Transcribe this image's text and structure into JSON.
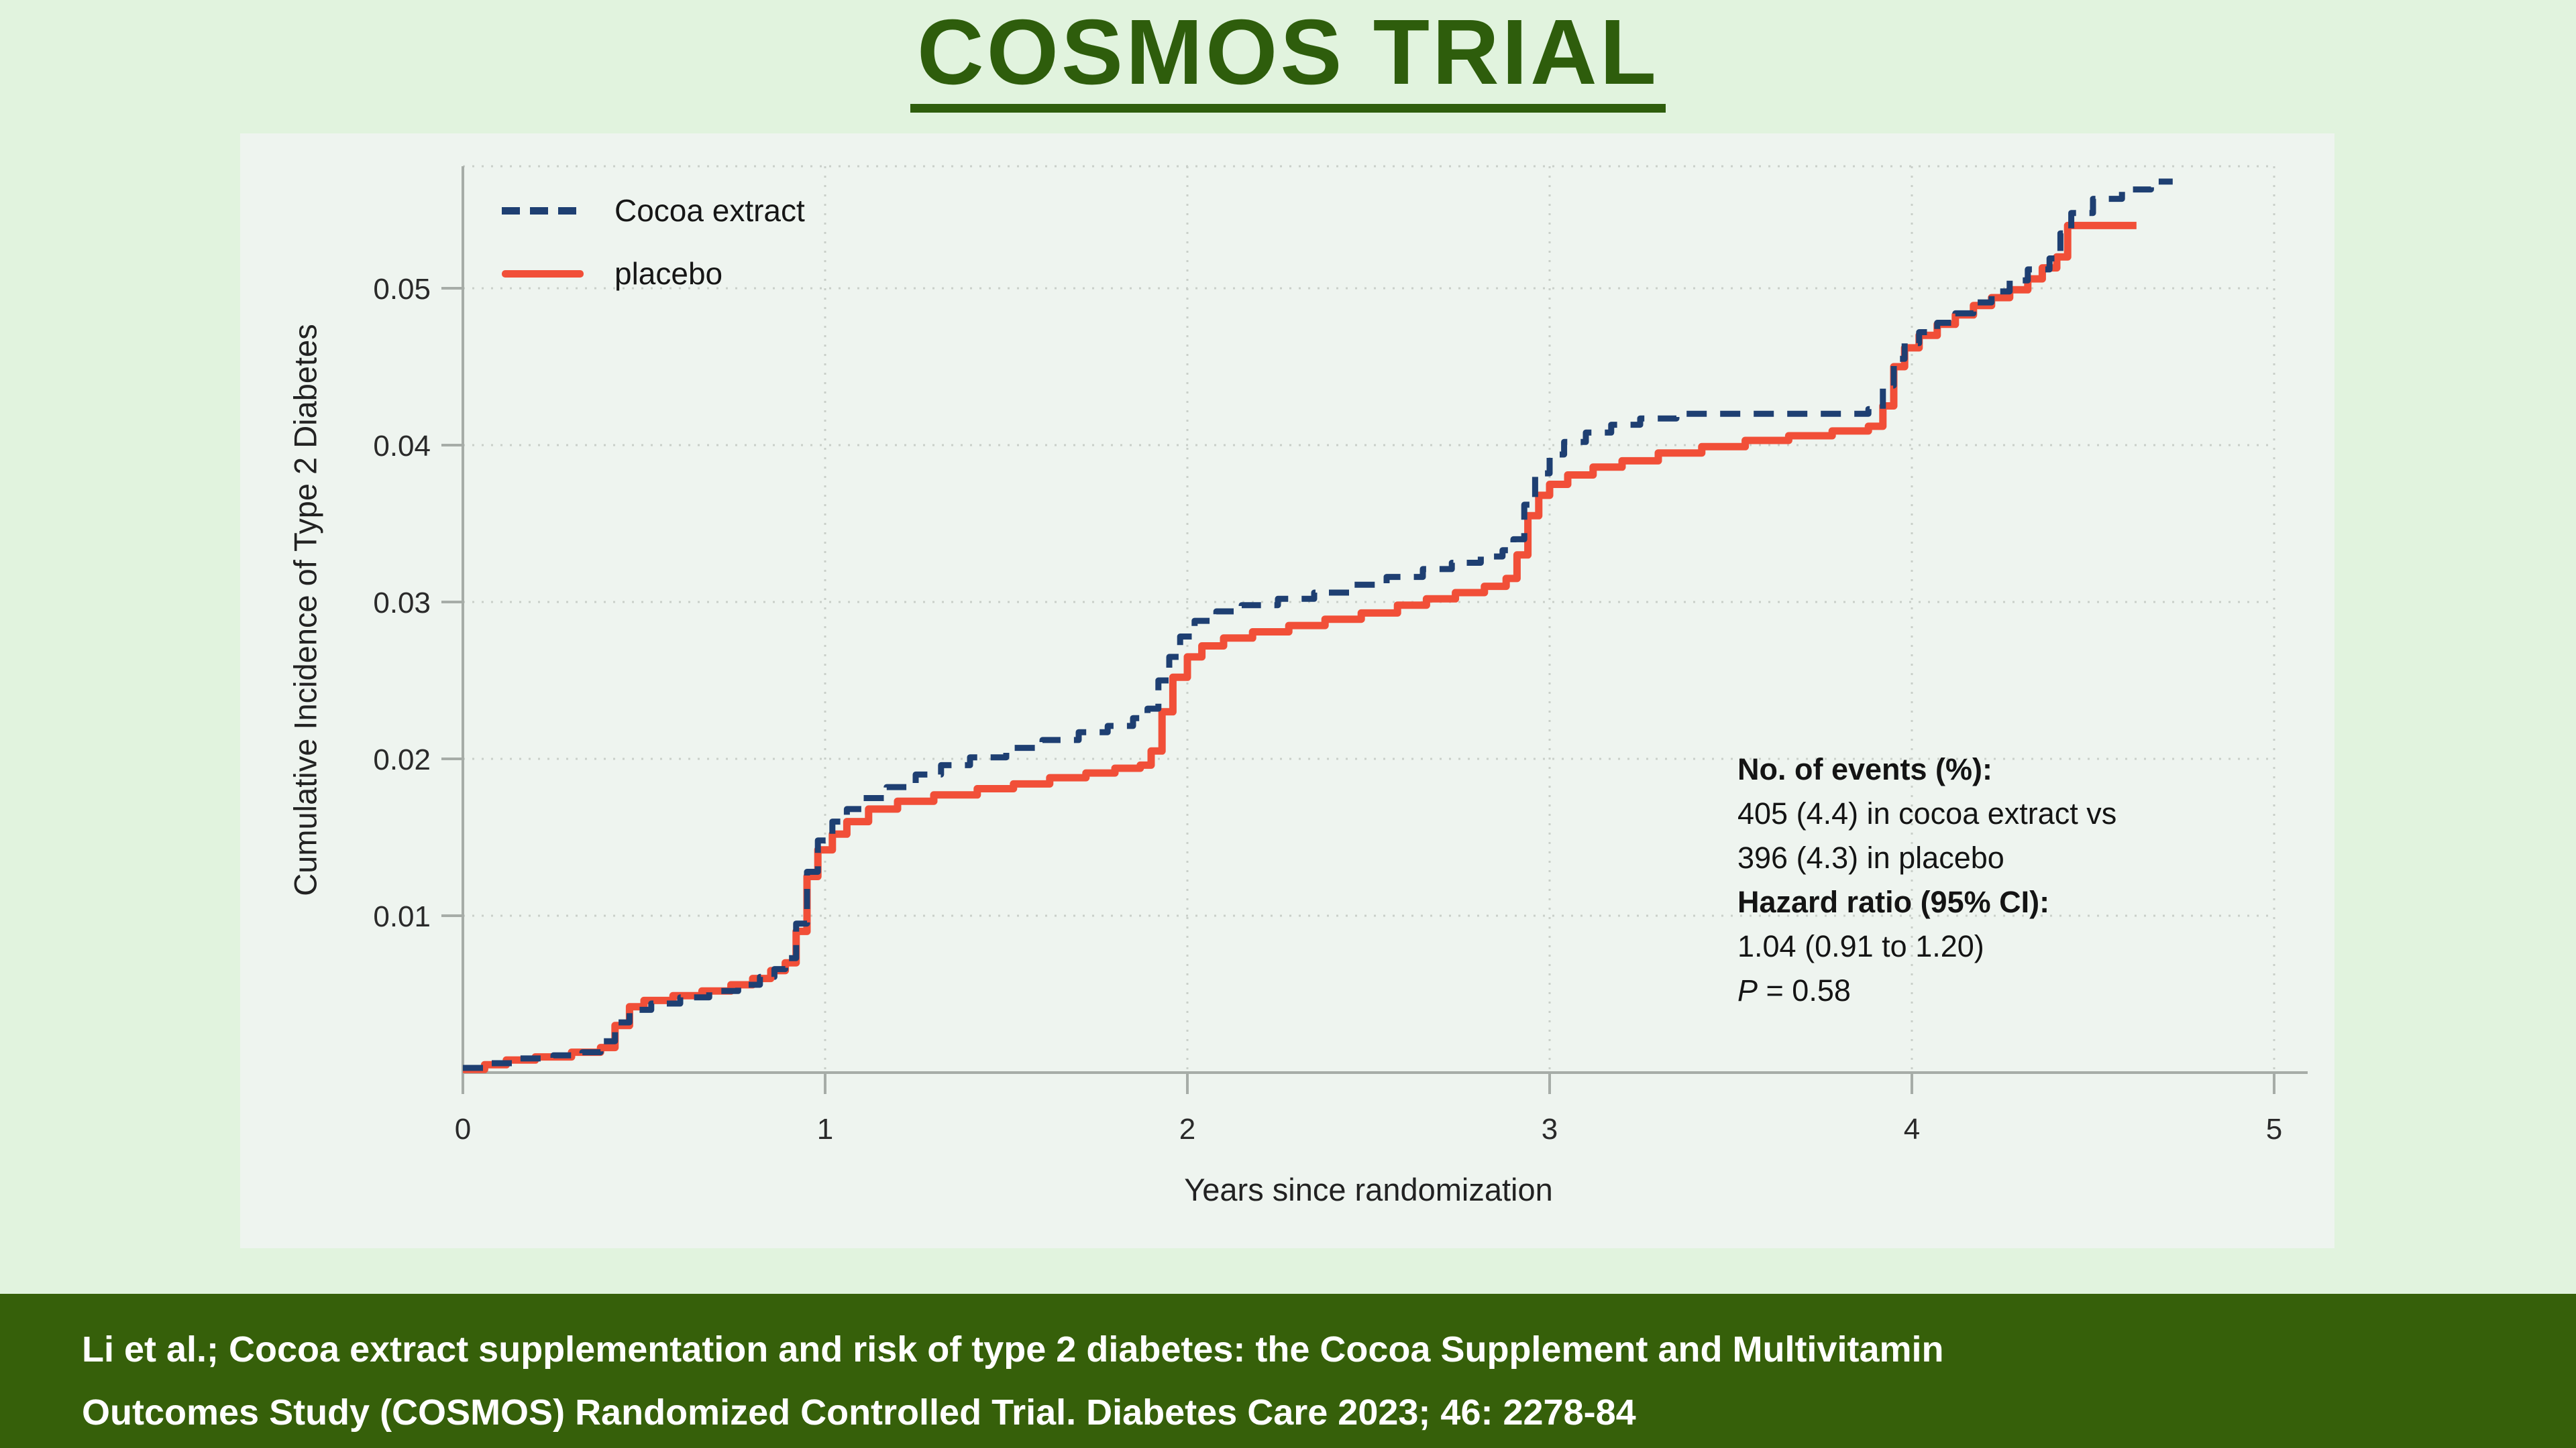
{
  "page": {
    "title": "COSMOS TRIAL"
  },
  "theme": {
    "page_bg": "#e1f3de",
    "card_bg": "#eef4ef",
    "title_color": "#2e5d0c",
    "footer_bg": "#36600a",
    "footer_text": "#ffffff",
    "axis": "#a6aca7",
    "grid": "#c9cfc9"
  },
  "chart_data": {
    "type": "line",
    "subtype": "step-cumulative-incidence",
    "title": "",
    "xlabel": "Years since randomization",
    "ylabel": "Cumulative Incidence of Type 2 Diabetes",
    "xlim": [
      0,
      5.1
    ],
    "ylim": [
      0,
      0.058
    ],
    "grid": "dotted",
    "legend_position": "top-left",
    "x_ticks": [
      0,
      1,
      2,
      3,
      4,
      5
    ],
    "x_tick_labels": [
      "0",
      "1",
      "2",
      "3",
      "4",
      "5"
    ],
    "y_ticks": [
      0.01,
      0.02,
      0.03,
      0.04,
      0.05
    ],
    "y_tick_labels": [
      "0.01",
      "0.02",
      "0.03",
      "0.04",
      "0.05"
    ],
    "series": [
      {
        "name": "Cocoa extract",
        "color": "#1e3f72",
        "style": "dashed",
        "points": [
          [
            0,
            0.0003
          ],
          [
            0.07,
            0.0006
          ],
          [
            0.15,
            0.0009
          ],
          [
            0.25,
            0.0011
          ],
          [
            0.33,
            0.0013
          ],
          [
            0.38,
            0.002
          ],
          [
            0.42,
            0.0032
          ],
          [
            0.46,
            0.004
          ],
          [
            0.52,
            0.0044
          ],
          [
            0.6,
            0.0048
          ],
          [
            0.68,
            0.0052
          ],
          [
            0.76,
            0.0056
          ],
          [
            0.82,
            0.0061
          ],
          [
            0.86,
            0.0066
          ],
          [
            0.89,
            0.0073
          ],
          [
            0.92,
            0.0095
          ],
          [
            0.95,
            0.0128
          ],
          [
            0.98,
            0.0148
          ],
          [
            1.02,
            0.016
          ],
          [
            1.06,
            0.0168
          ],
          [
            1.1,
            0.0175
          ],
          [
            1.17,
            0.0182
          ],
          [
            1.25,
            0.019
          ],
          [
            1.32,
            0.0196
          ],
          [
            1.4,
            0.0201
          ],
          [
            1.5,
            0.0207
          ],
          [
            1.6,
            0.0212
          ],
          [
            1.7,
            0.0217
          ],
          [
            1.78,
            0.0221
          ],
          [
            1.85,
            0.0226
          ],
          [
            1.89,
            0.0232
          ],
          [
            1.92,
            0.025
          ],
          [
            1.95,
            0.0265
          ],
          [
            1.98,
            0.0278
          ],
          [
            2.02,
            0.0288
          ],
          [
            2.08,
            0.0294
          ],
          [
            2.15,
            0.0298
          ],
          [
            2.25,
            0.0302
          ],
          [
            2.35,
            0.0306
          ],
          [
            2.45,
            0.0311
          ],
          [
            2.55,
            0.0316
          ],
          [
            2.65,
            0.0321
          ],
          [
            2.73,
            0.0325
          ],
          [
            2.81,
            0.0329
          ],
          [
            2.87,
            0.0333
          ],
          [
            2.9,
            0.034
          ],
          [
            2.93,
            0.0362
          ],
          [
            2.96,
            0.0382
          ],
          [
            3.0,
            0.0394
          ],
          [
            3.04,
            0.0402
          ],
          [
            3.1,
            0.0408
          ],
          [
            3.17,
            0.0413
          ],
          [
            3.25,
            0.0417
          ],
          [
            3.35,
            0.042
          ],
          [
            3.5,
            0.042
          ],
          [
            3.65,
            0.042
          ],
          [
            3.8,
            0.042
          ],
          [
            3.88,
            0.0423
          ],
          [
            3.92,
            0.0438
          ],
          [
            3.95,
            0.0455
          ],
          [
            3.98,
            0.0465
          ],
          [
            4.02,
            0.0472
          ],
          [
            4.07,
            0.0478
          ],
          [
            4.12,
            0.0484
          ],
          [
            4.17,
            0.0491
          ],
          [
            4.22,
            0.0498
          ],
          [
            4.27,
            0.0505
          ],
          [
            4.32,
            0.0512
          ],
          [
            4.38,
            0.0519
          ],
          [
            4.41,
            0.0535
          ],
          [
            4.44,
            0.0548
          ],
          [
            4.5,
            0.0557
          ],
          [
            4.58,
            0.0563
          ],
          [
            4.66,
            0.0568
          ],
          [
            4.72,
            0.0568
          ]
        ]
      },
      {
        "name": "placebo",
        "color": "#f14f38",
        "style": "solid",
        "points": [
          [
            0,
            0.0002
          ],
          [
            0.06,
            0.0005
          ],
          [
            0.12,
            0.0008
          ],
          [
            0.2,
            0.001
          ],
          [
            0.3,
            0.0013
          ],
          [
            0.38,
            0.0016
          ],
          [
            0.42,
            0.003
          ],
          [
            0.46,
            0.0042
          ],
          [
            0.5,
            0.0046
          ],
          [
            0.58,
            0.0049
          ],
          [
            0.66,
            0.0052
          ],
          [
            0.74,
            0.0056
          ],
          [
            0.8,
            0.006
          ],
          [
            0.85,
            0.0065
          ],
          [
            0.89,
            0.007
          ],
          [
            0.92,
            0.009
          ],
          [
            0.95,
            0.0125
          ],
          [
            0.98,
            0.0142
          ],
          [
            1.02,
            0.0152
          ],
          [
            1.06,
            0.016
          ],
          [
            1.12,
            0.0168
          ],
          [
            1.2,
            0.0173
          ],
          [
            1.3,
            0.0177
          ],
          [
            1.42,
            0.0181
          ],
          [
            1.52,
            0.0184
          ],
          [
            1.62,
            0.0188
          ],
          [
            1.72,
            0.0191
          ],
          [
            1.8,
            0.0194
          ],
          [
            1.87,
            0.0196
          ],
          [
            1.9,
            0.0205
          ],
          [
            1.93,
            0.023
          ],
          [
            1.96,
            0.0252
          ],
          [
            2.0,
            0.0265
          ],
          [
            2.04,
            0.0272
          ],
          [
            2.1,
            0.0277
          ],
          [
            2.18,
            0.0281
          ],
          [
            2.28,
            0.0285
          ],
          [
            2.38,
            0.0289
          ],
          [
            2.48,
            0.0293
          ],
          [
            2.58,
            0.0298
          ],
          [
            2.66,
            0.0302
          ],
          [
            2.74,
            0.0306
          ],
          [
            2.82,
            0.031
          ],
          [
            2.88,
            0.0315
          ],
          [
            2.91,
            0.033
          ],
          [
            2.94,
            0.0355
          ],
          [
            2.97,
            0.0368
          ],
          [
            3.0,
            0.0375
          ],
          [
            3.05,
            0.0381
          ],
          [
            3.12,
            0.0386
          ],
          [
            3.2,
            0.039
          ],
          [
            3.3,
            0.0395
          ],
          [
            3.42,
            0.0399
          ],
          [
            3.54,
            0.0403
          ],
          [
            3.66,
            0.0406
          ],
          [
            3.78,
            0.0409
          ],
          [
            3.88,
            0.0412
          ],
          [
            3.92,
            0.0425
          ],
          [
            3.95,
            0.045
          ],
          [
            3.98,
            0.0462
          ],
          [
            4.02,
            0.047
          ],
          [
            4.07,
            0.0477
          ],
          [
            4.12,
            0.0483
          ],
          [
            4.17,
            0.0489
          ],
          [
            4.22,
            0.0494
          ],
          [
            4.27,
            0.0499
          ],
          [
            4.32,
            0.0506
          ],
          [
            4.36,
            0.0513
          ],
          [
            4.4,
            0.052
          ],
          [
            4.43,
            0.054
          ],
          [
            4.62,
            0.054
          ]
        ]
      }
    ]
  },
  "annotation": {
    "lines": [
      {
        "text": "No. of events (%):",
        "bold": true
      },
      {
        "text": "405 (4.4) in cocoa extract vs"
      },
      {
        "text": "396 (4.3) in placebo"
      },
      {
        "text": "Hazard ratio (95% CI):",
        "bold": true
      },
      {
        "text": "1.04 (0.91 to 1.20)"
      },
      {
        "text": " = 0.58",
        "italic_lead": "P"
      }
    ]
  },
  "footer": {
    "line1": "Li et al.; Cocoa extract supplementation and risk of type 2 diabetes: the Cocoa Supplement and Multivitamin",
    "line2": "Outcomes Study (COSMOS) Randomized Controlled Trial. Diabetes Care 2023; 46: 2278-84"
  }
}
